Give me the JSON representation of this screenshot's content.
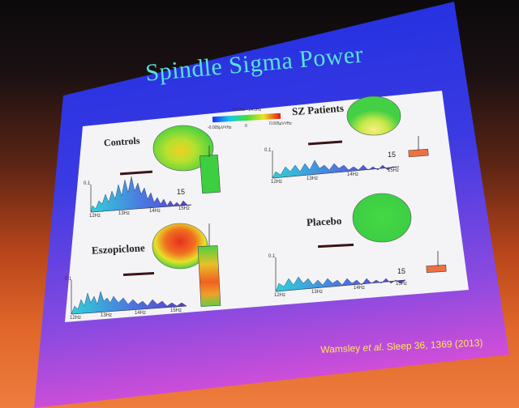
{
  "slide": {
    "title": "Spindle Sigma Power",
    "colorbar": {
      "top_label": "13.0Hz - 14.0Hz",
      "left_label": "-0.005μV²/Hz",
      "mid_label": "0",
      "right_label": "0.005μV²/Hz"
    },
    "panels": {
      "controls": {
        "label": "Controls",
        "y_tick": "0.1",
        "x_ticks": [
          "12Hz",
          "13Hz",
          "14Hz",
          "15Hz"
        ],
        "peak_label": "15"
      },
      "sz_patients": {
        "label": "SZ Patients",
        "y_tick": "0.1",
        "x_ticks": [
          "12Hz",
          "13Hz",
          "14Hz",
          "15Hz"
        ],
        "peak_label": "15"
      },
      "eszopiclone": {
        "label": "Eszopiclone",
        "y_tick": "0.1",
        "x_ticks": [
          "12Hz",
          "13Hz",
          "14Hz",
          "15Hz"
        ]
      },
      "placebo": {
        "label": "Placebo",
        "y_tick": "0.1",
        "x_ticks": [
          "12Hz",
          "13Hz",
          "14Hz",
          "15Hz"
        ],
        "peak_label": "15"
      }
    },
    "citation": {
      "authors": "Wamsley",
      "etal": "et al",
      "rest": ". Sleep 36, 1369 (2013)"
    }
  },
  "colors": {
    "title": "#56e3d6",
    "slide_top": "#2a3ad0",
    "slide_bottom": "#c24ae0",
    "citation": "#ffe45a"
  }
}
